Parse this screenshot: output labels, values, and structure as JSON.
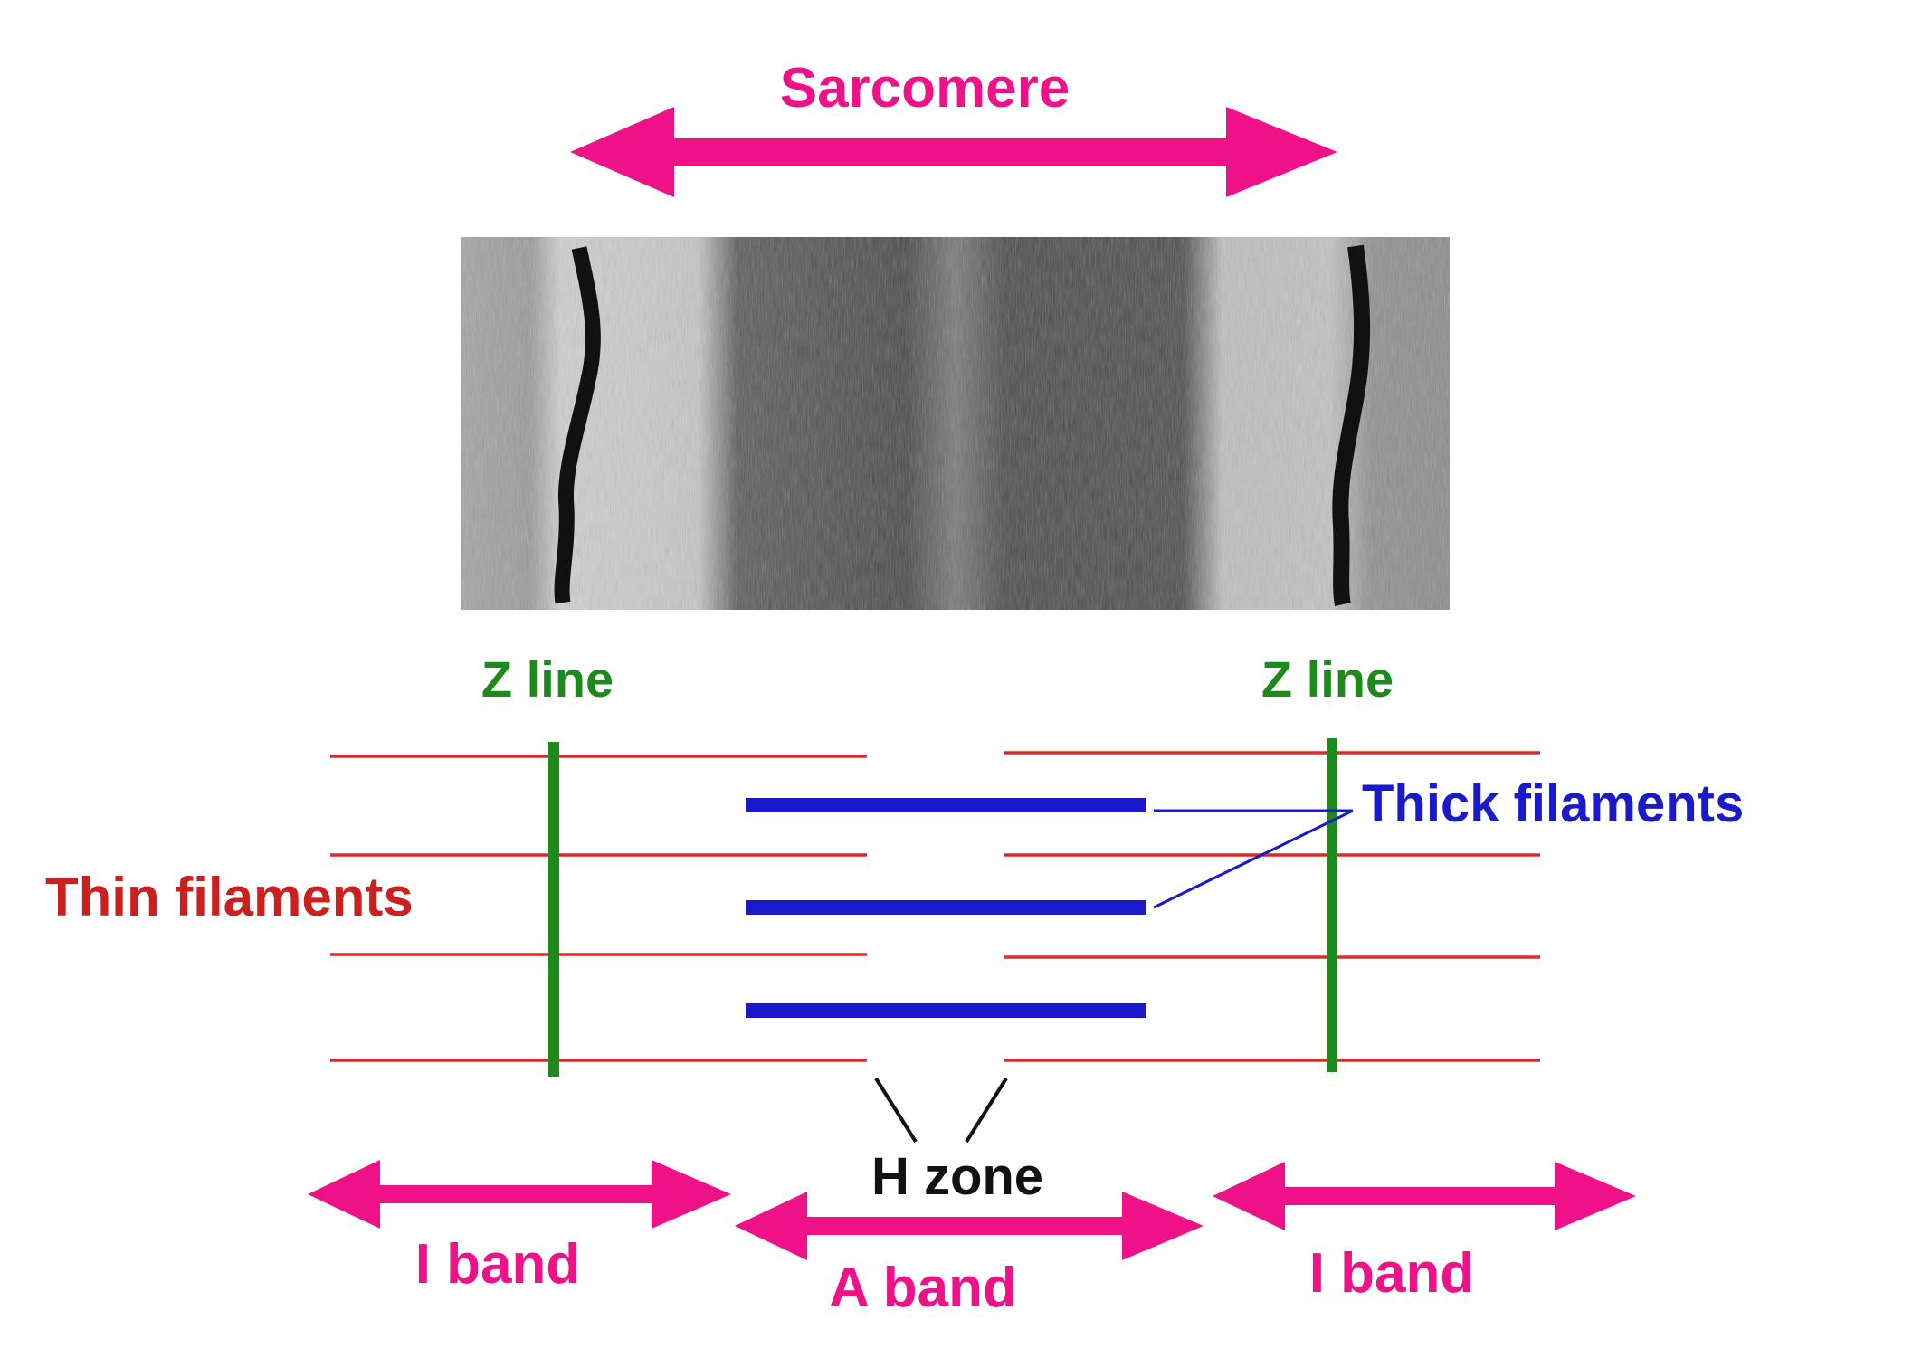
{
  "labels": {
    "sarcomere": "Sarcomere",
    "z_line_left": "Z line",
    "z_line_right": "Z line",
    "thick_filaments": "Thick filaments",
    "thin_filaments": "Thin filaments",
    "h_zone": "H zone",
    "i_band_left": "I band",
    "a_band": "A band",
    "i_band_right": "I band"
  },
  "colors": {
    "magenta": "#ee1188",
    "thin_red": "#dd2a2a",
    "thin_label": "#cc1f1f",
    "z_green": "#1e8a1e",
    "thick_blue": "#1a1acc",
    "black": "#111111"
  }
}
